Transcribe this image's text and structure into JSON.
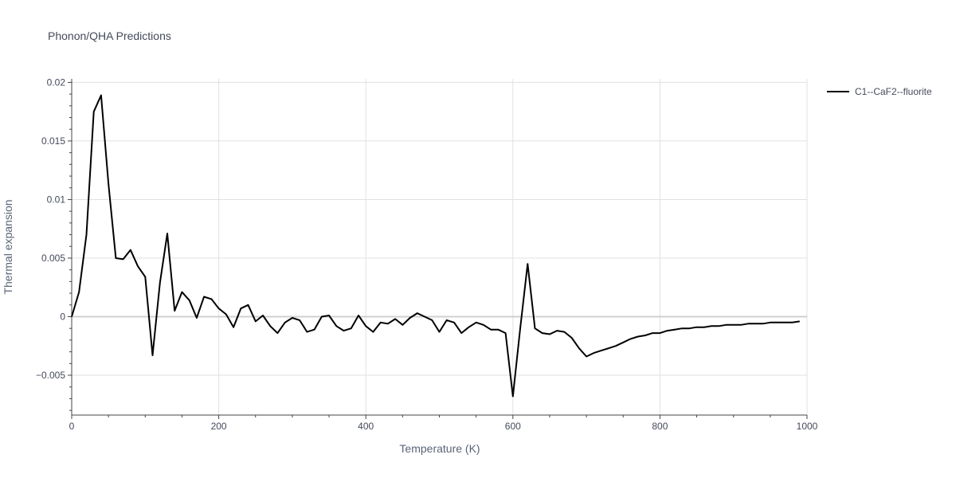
{
  "chart_data": {
    "type": "line",
    "title": "Phonon/QHA Predictions",
    "xlabel": "Temperature (K)",
    "ylabel": "Thermal expansion",
    "xlim": [
      0,
      1000
    ],
    "ylim": [
      -0.0084,
      0.0203
    ],
    "xticks": [
      0,
      200,
      400,
      600,
      800,
      1000
    ],
    "xtick_labels": [
      "0",
      "200",
      "400",
      "600",
      "800",
      "1000"
    ],
    "yticks": [
      -0.005,
      0,
      0.005,
      0.01,
      0.015,
      0.02
    ],
    "ytick_labels": [
      "−0.005",
      "0",
      "0.005",
      "0.01",
      "0.015",
      "0.02"
    ],
    "grid": true,
    "legend_position": "top-right",
    "series": [
      {
        "name": "C1--CaF2--fluorite",
        "color": "#000000",
        "x": [
          0,
          10,
          20,
          30,
          40,
          50,
          60,
          70,
          80,
          90,
          100,
          110,
          120,
          130,
          140,
          150,
          160,
          170,
          180,
          190,
          200,
          210,
          220,
          230,
          240,
          250,
          260,
          270,
          280,
          290,
          300,
          310,
          320,
          330,
          340,
          350,
          360,
          370,
          380,
          390,
          400,
          410,
          420,
          430,
          440,
          450,
          460,
          470,
          480,
          490,
          500,
          510,
          520,
          530,
          540,
          550,
          560,
          570,
          580,
          590,
          600,
          610,
          620,
          630,
          640,
          650,
          660,
          670,
          680,
          690,
          700,
          710,
          720,
          730,
          740,
          750,
          760,
          770,
          780,
          790,
          800,
          810,
          820,
          830,
          840,
          850,
          860,
          870,
          880,
          890,
          900,
          910,
          920,
          930,
          940,
          950,
          960,
          970,
          980,
          990
        ],
        "y": [
          0.0,
          0.0021,
          0.007,
          0.0175,
          0.0189,
          0.0113,
          0.005,
          0.0049,
          0.0057,
          0.0043,
          0.0034,
          -0.0033,
          0.0029,
          0.0071,
          0.0005,
          0.0021,
          0.0014,
          -0.0001,
          0.0017,
          0.0015,
          0.0007,
          0.0002,
          -0.0009,
          0.0007,
          0.001,
          -0.0004,
          0.0001,
          -0.0008,
          -0.0014,
          -0.0005,
          -0.0001,
          -0.0003,
          -0.0013,
          -0.0011,
          0.0,
          0.0001,
          -0.0008,
          -0.0012,
          -0.001,
          0.0001,
          -0.0008,
          -0.0013,
          -0.0005,
          -0.0006,
          -0.0002,
          -0.0007,
          -0.0001,
          0.0003,
          0.0,
          -0.0003,
          -0.0013,
          -0.0003,
          -0.0005,
          -0.0014,
          -0.0009,
          -0.0005,
          -0.0007,
          -0.0011,
          -0.0011,
          -0.0014,
          -0.0068,
          -0.001,
          0.0045,
          -0.001,
          -0.0014,
          -0.0015,
          -0.0012,
          -0.0013,
          -0.0018,
          -0.0027,
          -0.0034,
          -0.0031,
          -0.0029,
          -0.0027,
          -0.0025,
          -0.0022,
          -0.0019,
          -0.0017,
          -0.0016,
          -0.0014,
          -0.0014,
          -0.0012,
          -0.0011,
          -0.001,
          -0.001,
          -0.0009,
          -0.0009,
          -0.0008,
          -0.0008,
          -0.0007,
          -0.0007,
          -0.0007,
          -0.0006,
          -0.0006,
          -0.0006,
          -0.0005,
          -0.0005,
          -0.0005,
          -0.0005,
          -0.0004
        ]
      }
    ]
  }
}
